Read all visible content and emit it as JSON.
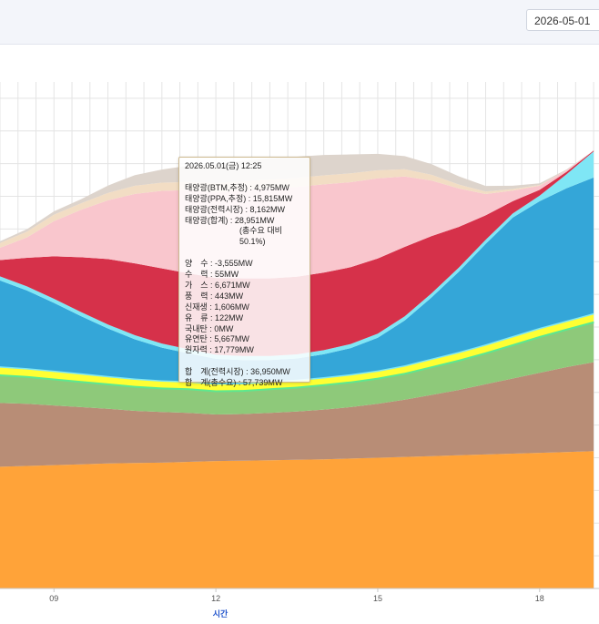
{
  "header": {
    "date_value": "2026-05-01"
  },
  "colors": {
    "nuclear": "#ffa339",
    "coal": "#b88d76",
    "lng": "#8ec97a",
    "lng_edge": "#5de88f",
    "renew": "#ffff33",
    "renew_edge": "#7fe6f5",
    "pumped": "#34a6d8",
    "solar_market": "#d6314a",
    "solar_ppa": "#f9c6cd",
    "solar_btm": "#f2ddc4",
    "top": "#ddd4cc"
  },
  "tooltip": {
    "time": "2026.05.01(금) 12:25",
    "solar_btm": "태양광(BTM,추정) : 4,975MW",
    "solar_ppa": "태양광(PPA,추정) : 15,815MW",
    "solar_market": "태양광(전력시장) : 8,162MW",
    "solar_total": "태양광(합계) : 28,951MW",
    "solar_share": "(총수요 대비 50.1%)",
    "pumped": "양　수 : -3,555MW",
    "hydro": "수　력 : 55MW",
    "gas": "가　스 : 6,671MW",
    "wind": "풍　력 : 443MW",
    "renew": "신재생 : 1,606MW",
    "oil": "유　류 : 122MW",
    "domestic_coal": "국내탄 : 0MW",
    "bituminous": "유연탄 : 5,667MW",
    "nuclear": "원자력 : 17,779MW",
    "total_market": "합　계(전력시장) : 36,950MW",
    "total_demand": "합　계(총수요) : 57,739MW"
  },
  "chart_data": {
    "type": "area",
    "title": "",
    "xlabel": "시간",
    "ylabel": "",
    "x_ticks": [
      "09",
      "12",
      "15",
      "18"
    ],
    "x_range_hours": [
      8.0,
      19.1
    ],
    "ylim": [
      0,
      62000
    ],
    "grid": true,
    "x": [
      8.0,
      8.5,
      9.0,
      9.5,
      10.0,
      10.5,
      11.0,
      11.5,
      12.0,
      12.5,
      13.0,
      13.5,
      14.0,
      14.5,
      15.0,
      15.5,
      16.0,
      16.5,
      17.0,
      17.5,
      18.0,
      18.5,
      19.0
    ],
    "series": [
      {
        "name": "원자력",
        "values": [
          14900,
          15000,
          15100,
          15200,
          15300,
          15350,
          15400,
          15500,
          15600,
          15650,
          15700,
          15750,
          15800,
          15900,
          16000,
          16100,
          16200,
          16300,
          16400,
          16500,
          16600,
          16700,
          16800
        ]
      },
      {
        "name": "유연탄",
        "values": [
          7800,
          7600,
          7300,
          7000,
          6700,
          6400,
          6200,
          6000,
          5700,
          5700,
          5800,
          5900,
          6100,
          6300,
          6600,
          7000,
          7500,
          8000,
          8600,
          9200,
          9800,
          10400,
          10900
        ]
      },
      {
        "name": "가스",
        "values": [
          3500,
          3400,
          3300,
          3200,
          3100,
          3050,
          3000,
          3000,
          2950,
          2950,
          3000,
          3050,
          3100,
          3150,
          3200,
          3300,
          3500,
          3700,
          3900,
          4200,
          4500,
          4700,
          5000
        ]
      },
      {
        "name": "신재생",
        "values": [
          1000,
          980,
          960,
          940,
          920,
          900,
          880,
          870,
          860,
          860,
          860,
          860,
          870,
          880,
          900,
          920,
          940,
          960,
          980,
          1000,
          1000,
          1000,
          1000
        ]
      },
      {
        "name": "양수",
        "values": [
          10500,
          9500,
          8300,
          7000,
          5800,
          4800,
          4000,
          3400,
          3000,
          2800,
          2600,
          2600,
          2800,
          3200,
          4000,
          5500,
          7500,
          9800,
          12300,
          14500,
          15500,
          16200,
          16600
        ]
      },
      {
        "name": "수력",
        "values": [
          500,
          500,
          500,
          500,
          500,
          500,
          500,
          500,
          500,
          500,
          500,
          500,
          500,
          500,
          500,
          500,
          500,
          500,
          500,
          500,
          700,
          1700,
          3200
        ]
      },
      {
        "name": "태양광(전력시장)",
        "values": [
          2000,
          3500,
          5200,
          6700,
          8000,
          8800,
          9200,
          9300,
          9400,
          9500,
          9500,
          9500,
          9500,
          9400,
          9200,
          8500,
          7000,
          5000,
          3000,
          1500,
          700,
          300,
          100
        ]
      },
      {
        "name": "태양광(PPA,추정)",
        "values": [
          1500,
          2500,
          4300,
          5800,
          7200,
          8500,
          9500,
          10200,
          10500,
          10800,
          11000,
          11000,
          10800,
          10400,
          9800,
          8600,
          6800,
          4700,
          2600,
          1300,
          500,
          200,
          0
        ]
      },
      {
        "name": "태양광(BTM,추정)",
        "values": [
          600,
          700,
          800,
          800,
          900,
          1000,
          1000,
          1000,
          1100,
          1100,
          1100,
          1100,
          1100,
          1100,
          1000,
          900,
          700,
          500,
          300,
          200,
          100,
          0,
          0
        ]
      },
      {
        "name": "",
        "values": [
          200,
          300,
          400,
          500,
          900,
          1300,
          1600,
          2000,
          2300,
          2500,
          2600,
          2600,
          2500,
          2300,
          2000,
          1600,
          1300,
          1000,
          700,
          400,
          200,
          100,
          0
        ]
      }
    ]
  }
}
